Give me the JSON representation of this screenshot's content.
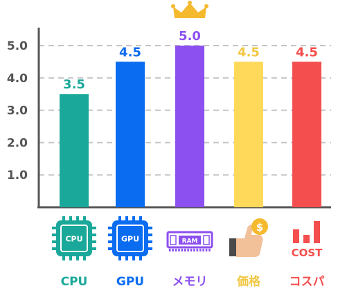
{
  "chart_data": {
    "type": "bar",
    "categories": [
      "CPU",
      "GPU",
      "メモリ",
      "価格",
      "コスパ"
    ],
    "values": [
      3.5,
      4.5,
      5.0,
      4.5,
      4.5
    ],
    "value_labels": [
      "3.5",
      "4.5",
      "5.0",
      "4.5",
      "4.5"
    ],
    "colors": [
      "#1aa89a",
      "#0a6cf0",
      "#8c4ff0",
      "#ffd95a",
      "#f54e4e"
    ],
    "label_colors": [
      "#1aa89a",
      "#0a6cf0",
      "#8c4ff0",
      "#f2c744",
      "#f54e4e"
    ],
    "yticks": [
      "1.0",
      "2.0",
      "3.0",
      "4.0",
      "5.0"
    ],
    "ytick_values": [
      1,
      2,
      3,
      4,
      5
    ],
    "ylim": [
      0,
      5.5
    ],
    "grid": true,
    "title": "",
    "xlabel": "",
    "ylabel": "",
    "highlight_index": 2,
    "icons": [
      "cpu-chip-icon",
      "gpu-chip-icon",
      "ram-module-icon",
      "price-thumbs-up-icon",
      "cost-bar-icon"
    ],
    "highlight_icon": "crown-icon",
    "icon_texts": {
      "cpu": "CPU",
      "gpu": "GPU",
      "ram": "RAM",
      "price": "$",
      "cost": "COST"
    }
  }
}
